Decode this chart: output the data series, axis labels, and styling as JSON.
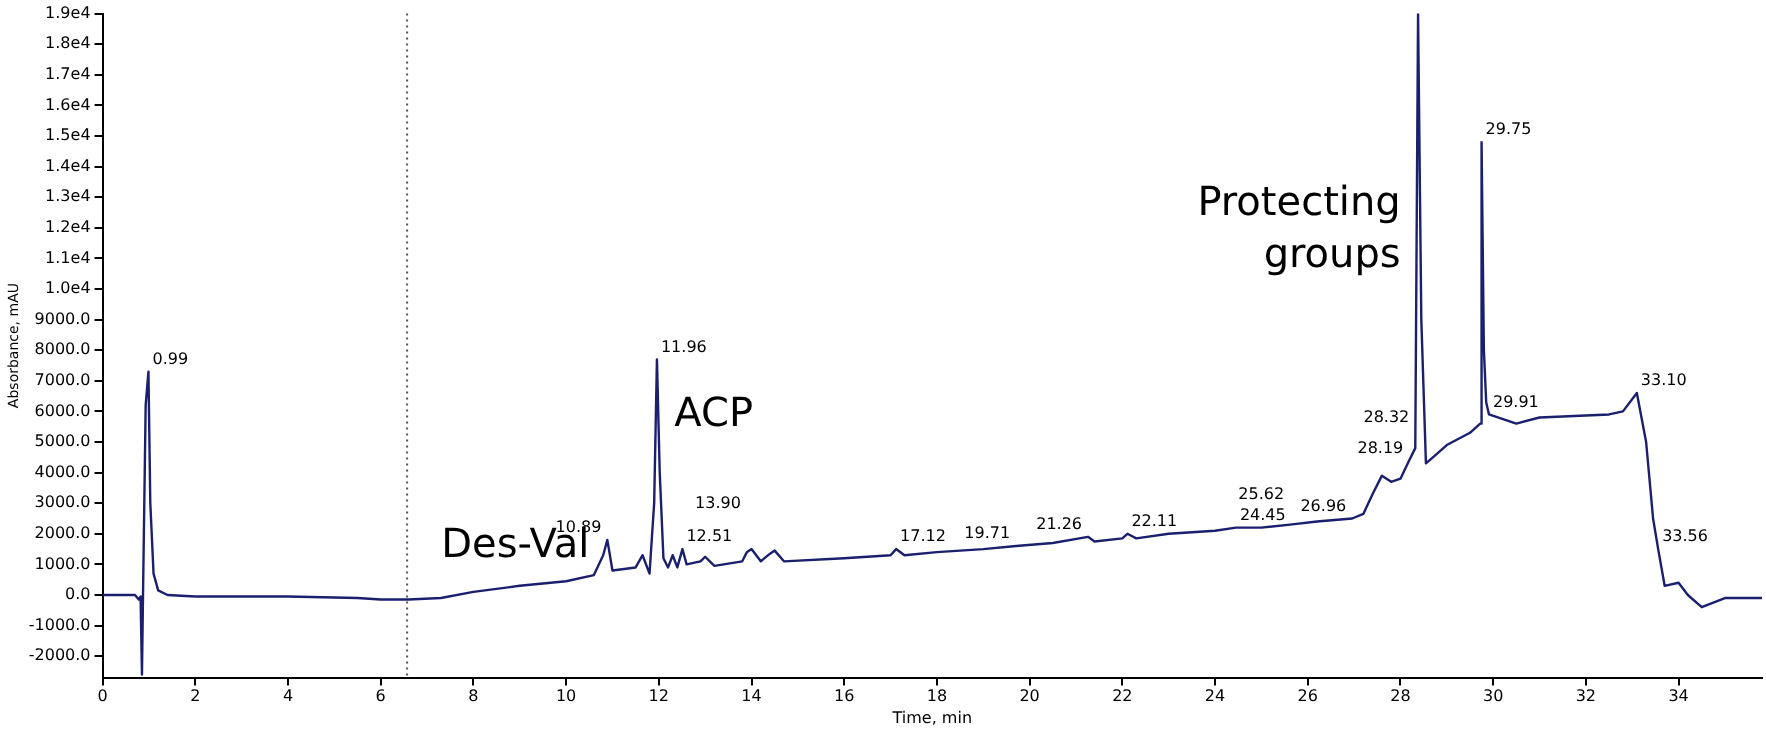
{
  "chart_data": {
    "type": "line",
    "xlabel": "Time, min",
    "ylabel": "Absorbance, mAU",
    "xlim": [
      0,
      35.8
    ],
    "xticks": [
      0,
      2,
      4,
      6,
      8,
      10,
      12,
      14,
      16,
      18,
      20,
      22,
      24,
      26,
      28,
      30,
      32,
      34
    ],
    "ylim": [
      -2700,
      19000
    ],
    "yticks": [
      {
        "value": -2000,
        "label": "-2000.0"
      },
      {
        "value": -1000,
        "label": "-1000.0"
      },
      {
        "value": 0,
        "label": "0.0"
      },
      {
        "value": 1000,
        "label": "1000.0"
      },
      {
        "value": 2000,
        "label": "2000.0"
      },
      {
        "value": 3000,
        "label": "3000.0"
      },
      {
        "value": 4000,
        "label": "4000.0"
      },
      {
        "value": 5000,
        "label": "5000.0"
      },
      {
        "value": 6000,
        "label": "6000.0"
      },
      {
        "value": 7000,
        "label": "7000.0"
      },
      {
        "value": 8000,
        "label": "8000.0"
      },
      {
        "value": 9000,
        "label": "9000.0"
      },
      {
        "value": 10000,
        "label": "1.0e4"
      },
      {
        "value": 11000,
        "label": "1.1e4"
      },
      {
        "value": 12000,
        "label": "1.2e4"
      },
      {
        "value": 13000,
        "label": "1.3e4"
      },
      {
        "value": 14000,
        "label": "1.4e4"
      },
      {
        "value": 15000,
        "label": "1.5e4"
      },
      {
        "value": 16000,
        "label": "1.6e4"
      },
      {
        "value": 17000,
        "label": "1.7e4"
      },
      {
        "value": 18000,
        "label": "1.8e4"
      },
      {
        "value": 19000,
        "label": "1.9e4"
      }
    ],
    "grid": false,
    "legend": false,
    "marker": "none",
    "series": [
      {
        "color": "#1a1f6e",
        "x": [
          0,
          0.7,
          0.78,
          0.82,
          0.85,
          0.88,
          0.93,
          0.99,
          1.03,
          1.1,
          1.2,
          1.4,
          2,
          4,
          5.5,
          6,
          6.6,
          7.3,
          8,
          9,
          10,
          10.6,
          10.8,
          10.89,
          11.0,
          11.5,
          11.65,
          11.8,
          11.9,
          11.96,
          12.02,
          12.1,
          12.2,
          12.3,
          12.4,
          12.51,
          12.6,
          12.9,
          13.0,
          13.2,
          13.8,
          13.9,
          14.0,
          14.2,
          14.4,
          14.5,
          14.7,
          16,
          17.0,
          17.12,
          17.3,
          18,
          19,
          19.71,
          20.5,
          21.26,
          21.4,
          22.0,
          22.11,
          22.3,
          23,
          24,
          24.45,
          25,
          25.62,
          26.2,
          26.96,
          27.2,
          27.4,
          27.6,
          27.8,
          28.0,
          28.19,
          28.32,
          28.38,
          28.45,
          28.55,
          28.7,
          29,
          29.5,
          29.72,
          29.75,
          29.8,
          29.85,
          29.91,
          30.5,
          31,
          32.5,
          32.8,
          33.1,
          33.3,
          33.45,
          33.56,
          33.7,
          34,
          34.2,
          34.5,
          35,
          35.8
        ],
        "values": [
          0,
          0,
          -150,
          -50,
          -2600,
          800,
          6200,
          7300,
          3000,
          700,
          150,
          0,
          -50,
          -50,
          -100,
          -150,
          -150,
          -100,
          100,
          300,
          450,
          650,
          1300,
          1800,
          800,
          900,
          1300,
          700,
          3000,
          7700,
          4000,
          1200,
          900,
          1300,
          900,
          1500,
          1000,
          1100,
          1250,
          950,
          1100,
          1400,
          1500,
          1100,
          1350,
          1450,
          1100,
          1200,
          1300,
          1500,
          1300,
          1400,
          1500,
          1600,
          1700,
          1900,
          1750,
          1850,
          2000,
          1850,
          2000,
          2100,
          2200,
          2200,
          2300,
          2400,
          2500,
          2650,
          3300,
          3900,
          3700,
          3800,
          4400,
          4800,
          19000,
          9000,
          4300,
          4500,
          4900,
          5300,
          5600,
          14800,
          8000,
          6300,
          5900,
          5600,
          5800,
          5900,
          6000,
          6600,
          5000,
          2500,
          1500,
          300,
          400,
          0,
          -400,
          -100,
          -100
        ]
      }
    ],
    "ref_lines": [
      {
        "axis": "x",
        "value": 6.57,
        "color": "#555555",
        "line_style": "dotted"
      }
    ],
    "annotations": [
      {
        "text": "0.99",
        "x": 0.99,
        "y": 7300
      },
      {
        "text": "10.89",
        "x": 10.89,
        "y": 1800
      },
      {
        "text": "11.96",
        "x": 11.96,
        "y": 7700
      },
      {
        "text": "12.51",
        "x": 12.51,
        "y": 1500
      },
      {
        "text": "13.90",
        "x": 13.9,
        "y": 1400
      },
      {
        "text": "17.12",
        "x": 17.12,
        "y": 1500
      },
      {
        "text": "19.71",
        "x": 19.71,
        "y": 1600
      },
      {
        "text": "21.26",
        "x": 21.26,
        "y": 1900
      },
      {
        "text": "22.11",
        "x": 22.11,
        "y": 2000
      },
      {
        "text": "24.45",
        "x": 24.45,
        "y": 2200
      },
      {
        "text": "25.62",
        "x": 25.62,
        "y": 2300
      },
      {
        "text": "26.96",
        "x": 26.96,
        "y": 2500
      },
      {
        "text": "28.19",
        "x": 28.19,
        "y": 4400
      },
      {
        "text": "28.32",
        "x": 28.32,
        "y": 4800
      },
      {
        "text": "29.75",
        "x": 29.75,
        "y": 14800
      },
      {
        "text": "29.91",
        "x": 29.91,
        "y": 5900
      },
      {
        "text": "33.10",
        "x": 33.1,
        "y": 6600
      },
      {
        "text": "33.56",
        "x": 33.56,
        "y": 1500
      },
      {
        "text": "Des-Val",
        "x": 10.85,
        "y": 1578
      },
      {
        "text": "ACP",
        "x": 11.99,
        "y": 5850
      },
      {
        "text": "Protecting groups",
        "x": 28.35,
        "y": 11900
      }
    ]
  }
}
